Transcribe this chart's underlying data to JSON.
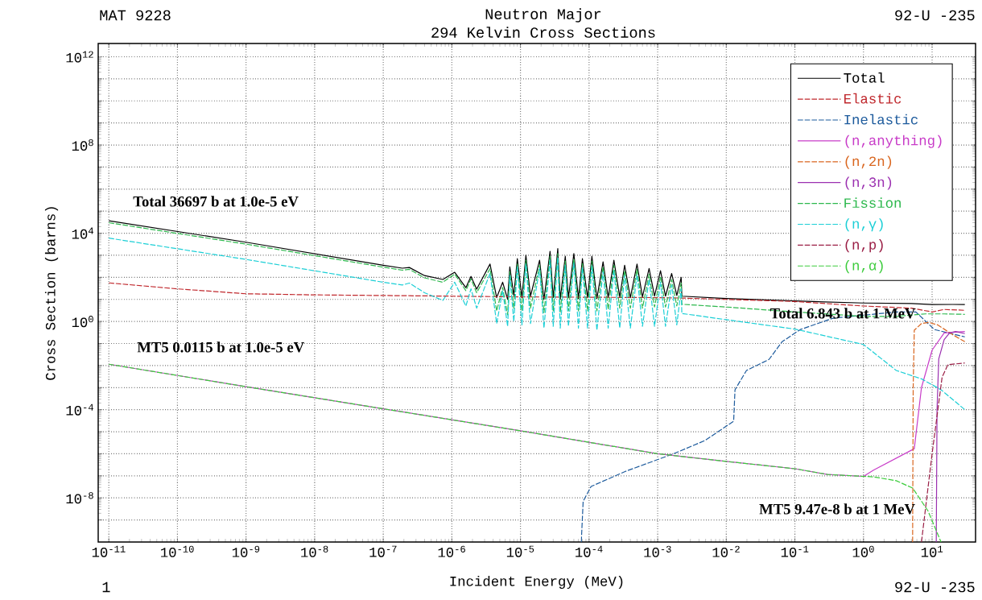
{
  "chart_data": {
    "type": "line",
    "title": "Neutron Major",
    "subtitle": "294 Kelvin Cross Sections",
    "xlabel": "Incident Energy (MeV)",
    "ylabel": "Cross Section (barns)",
    "log": "xy",
    "grid": true,
    "legend": "top right",
    "xlim": [
      7e-12,
      43
    ],
    "ylim": [
      1e-10,
      4000000000000.0
    ],
    "xticks": [
      {
        "value": 1e-11,
        "label": "10$^{-11}$"
      },
      {
        "value": 1e-10,
        "label": "10$^{-10}$"
      },
      {
        "value": 1e-09,
        "label": "10$^{-9}$"
      },
      {
        "value": 1e-08,
        "label": "10$^{-8}$"
      },
      {
        "value": 1e-07,
        "label": "10$^{-7}$"
      },
      {
        "value": 1e-06,
        "label": "10$^{-6}$"
      },
      {
        "value": 1e-05,
        "label": "10$^{-5}$"
      },
      {
        "value": 0.0001,
        "label": "10$^{-4}$"
      },
      {
        "value": 0.001,
        "label": "10$^{-3}$"
      },
      {
        "value": 0.01,
        "label": "10$^{-2}$"
      },
      {
        "value": 0.1,
        "label": "10$^{-1}$"
      },
      {
        "value": 1,
        "label": "10$^{0}$"
      },
      {
        "value": 10,
        "label": "10$^{1}$"
      }
    ],
    "yticks": [
      {
        "value": 1e-09,
        "label": null
      },
      {
        "value": 1e-08,
        "label": "10$^{-8}$"
      },
      {
        "value": 1e-07,
        "label": null
      },
      {
        "value": 1e-06,
        "label": null
      },
      {
        "value": 1e-05,
        "label": null
      },
      {
        "value": 0.0001,
        "label": "10$^{-4}$"
      },
      {
        "value": 0.001,
        "label": null
      },
      {
        "value": 0.01,
        "label": null
      },
      {
        "value": 0.1,
        "label": null
      },
      {
        "value": 1,
        "label": "10$^{0}$"
      },
      {
        "value": 10,
        "label": null
      },
      {
        "value": 100,
        "label": null
      },
      {
        "value": 1000,
        "label": null
      },
      {
        "value": 10000.0,
        "label": "10$^{4}$"
      },
      {
        "value": 100000.0,
        "label": null
      },
      {
        "value": 1000000.0,
        "label": null
      },
      {
        "value": 10000000.0,
        "label": null
      },
      {
        "value": 100000000.0,
        "label": "10$^{8}$"
      },
      {
        "value": 1000000000.0,
        "label": null
      },
      {
        "value": 10000000000.0,
        "label": null
      },
      {
        "value": 100000000000.0,
        "label": null
      },
      {
        "value": 1000000000000.0,
        "label": "10$^{12}$"
      }
    ],
    "annotations": [
      "MAT 9228",
      "92-U -235",
      "1",
      "92-U -235",
      "Total 36697 b at 1.0e-5 eV",
      "Total 6.843 b at 1 MeV",
      "MT5 0.0115 b at 1.0e-5 eV",
      "MT5 9.47e-8 b at 1 MeV"
    ],
    "series": [
      {
        "name": "Total",
        "color": "#000000",
        "line_style": "solid",
        "x": [
          1e-11,
          1e-09,
          1e-07,
          1.9e-07,
          2.4e-07,
          4e-07,
          7.4e-07,
          1.1e-06,
          1.6e-06,
          1.9e-06,
          2.3e-06,
          3.6e-06,
          4.5e-06,
          5.5e-06,
          6.5e-06,
          7e-06,
          8e-06,
          9e-06,
          1.05e-05,
          1.2e-05,
          1.4e-05,
          1.9e-05,
          2.2e-05,
          2.7e-05,
          3e-05,
          3.5e-05,
          3.8e-05,
          4.5e-05,
          5e-05,
          6e-05,
          7e-05,
          8e-05,
          9.5e-05,
          0.00011,
          0.00013,
          0.00016,
          0.00019,
          0.00023,
          0.00028,
          0.00033,
          0.0004,
          0.0005,
          0.0006,
          0.00075,
          0.0009,
          0.0011,
          0.0013,
          0.0016,
          0.0019,
          0.0022,
          0.00225,
          0.01,
          0.1,
          1,
          5,
          10,
          20,
          30
        ],
        "values": [
          36697,
          3900,
          350,
          260,
          280,
          120,
          80,
          170,
          34,
          110,
          29,
          400,
          12,
          60,
          10,
          300,
          15,
          700,
          12,
          1000,
          14,
          600,
          10,
          1500,
          12,
          2000,
          10,
          900,
          12,
          1200,
          11,
          700,
          12,
          900,
          11,
          500,
          12,
          600,
          13,
          350,
          12,
          400,
          13,
          250,
          14,
          200,
          14,
          150,
          15,
          100,
          14,
          11,
          8.5,
          6.843,
          6.5,
          5.8,
          5.9,
          5.8
        ]
      },
      {
        "name": "Elastic",
        "color": "#c0282d",
        "line_style": "dashed",
        "x": [
          1e-11,
          1e-10,
          1e-09,
          1e-08,
          1e-07,
          1e-06,
          1e-05,
          0.0001,
          0.001,
          0.00225,
          0.01,
          0.1,
          1,
          5,
          10,
          15,
          30
        ],
        "values": [
          56,
          30,
          18,
          16,
          15,
          14,
          13,
          12.5,
          12,
          11.5,
          10,
          8,
          5,
          4,
          2.7,
          3.5,
          3.2
        ]
      },
      {
        "name": "Inelastic",
        "color": "#1c5a9c",
        "line_style": "dashed",
        "x": [
          7.7e-05,
          8.2e-05,
          0.000107,
          0.00034,
          0.0017,
          0.0049,
          0.0128,
          0.0134,
          0.0197,
          0.042,
          0.065,
          0.12,
          0.36,
          3,
          5.8,
          10.8,
          30
        ],
        "values": [
          1e-10,
          7e-09,
          3.3e-08,
          1.6e-07,
          1e-06,
          4e-06,
          3e-05,
          0.0008,
          0.006,
          0.019,
          0.12,
          0.43,
          1.4,
          2.7,
          2.7,
          0.43,
          0.2
        ]
      },
      {
        "name": "(n,anything)",
        "color": "#c83cc8",
        "line_style": "solid",
        "x": [
          1e-11,
          1e-09,
          1e-07,
          1e-05,
          0.001,
          0.01,
          0.1,
          0.3,
          1,
          1.4,
          5.5,
          7,
          10,
          15,
          30
        ],
        "values": [
          0.0115,
          0.0011,
          0.00011,
          1.1e-05,
          1e-06,
          4.5e-07,
          2.1e-07,
          1.15e-07,
          9.47e-08,
          1.8e-07,
          1.7e-06,
          0.001,
          0.05,
          0.3,
          0.35
        ]
      },
      {
        "name": "(n,2n)",
        "color": "#d9661f",
        "line_style": "dashed",
        "x": [
          5.2,
          5.3,
          5.5,
          7,
          9,
          12,
          15,
          20,
          30
        ],
        "values": [
          1e-10,
          0.001,
          0.4,
          0.8,
          0.9,
          0.7,
          0.45,
          0.25,
          0.12
        ]
      },
      {
        "name": "(n,3n)",
        "color": "#9b30b0",
        "line_style": "solid",
        "x": [
          11.5,
          11.8,
          12.5,
          15,
          18,
          22,
          30
        ],
        "values": [
          1e-10,
          0.0001,
          0.02,
          0.15,
          0.3,
          0.35,
          0.28
        ]
      },
      {
        "name": "Fission",
        "color": "#2db84d",
        "line_style": "dashed",
        "x": [
          1e-11,
          1e-09,
          1e-07,
          1.9e-07,
          2.4e-07,
          4e-07,
          7.4e-07,
          1.1e-06,
          1.6e-06,
          1.9e-06,
          2.3e-06,
          3.6e-06,
          4.5e-06,
          5.5e-06,
          6.5e-06,
          7e-06,
          8e-06,
          9e-06,
          1.05e-05,
          1.2e-05,
          1.4e-05,
          1.9e-05,
          2.2e-05,
          2.7e-05,
          3e-05,
          3.5e-05,
          3.8e-05,
          4.5e-05,
          5e-05,
          6e-05,
          7e-05,
          8e-05,
          9.5e-05,
          0.00011,
          0.00013,
          0.00016,
          0.00019,
          0.00023,
          0.00028,
          0.00033,
          0.0004,
          0.0005,
          0.0006,
          0.00075,
          0.0009,
          0.0011,
          0.0013,
          0.0016,
          0.0019,
          0.0022,
          0.00225,
          0.01,
          0.1,
          1,
          3,
          8,
          15,
          30
        ],
        "values": [
          30000,
          3200,
          290,
          210,
          230,
          95,
          60,
          140,
          25,
          85,
          20,
          250,
          3,
          35,
          2,
          180,
          4,
          400,
          3,
          600,
          4,
          350,
          2.5,
          900,
          3,
          1200,
          2.5,
          550,
          3,
          700,
          3,
          420,
          3,
          550,
          3,
          300,
          3.5,
          350,
          4,
          200,
          4,
          230,
          4,
          140,
          4.5,
          110,
          4.5,
          80,
          5,
          55,
          6,
          4.5,
          2.7,
          1.7,
          1.7,
          2.2,
          2.2,
          2.1
        ]
      },
      {
        "name": "(n,γ)",
        "color": "#1ccfd6",
        "line_style": "dashed",
        "x": [
          1e-11,
          1e-09,
          1e-07,
          1.9e-07,
          2.4e-07,
          4e-07,
          7.4e-07,
          1.1e-06,
          1.6e-06,
          1.9e-06,
          2.3e-06,
          3.6e-06,
          4.5e-06,
          5.5e-06,
          6.5e-06,
          7e-06,
          8e-06,
          9e-06,
          1.05e-05,
          1.2e-05,
          1.4e-05,
          1.9e-05,
          2.2e-05,
          2.7e-05,
          3e-05,
          3.5e-05,
          3.8e-05,
          4.5e-05,
          5e-05,
          6e-05,
          7e-05,
          8e-05,
          9.5e-05,
          0.00011,
          0.00013,
          0.00016,
          0.00019,
          0.00023,
          0.00028,
          0.00033,
          0.0004,
          0.0005,
          0.0006,
          0.00075,
          0.0009,
          0.0011,
          0.0013,
          0.0016,
          0.0019,
          0.0022,
          0.00225,
          0.01,
          0.1,
          1,
          3,
          7,
          13.5,
          30
        ],
        "values": [
          6000,
          650,
          60,
          45,
          55,
          20,
          9,
          60,
          5,
          30,
          4,
          150,
          0.8,
          25,
          0.6,
          120,
          1,
          300,
          0.7,
          400,
          0.8,
          250,
          0.5,
          600,
          0.6,
          800,
          0.5,
          350,
          0.6,
          450,
          0.5,
          270,
          0.5,
          330,
          0.4,
          180,
          0.5,
          200,
          0.5,
          120,
          0.5,
          130,
          0.6,
          80,
          0.6,
          60,
          0.6,
          45,
          0.7,
          30,
          2.3,
          1.2,
          0.45,
          0.09,
          0.006,
          0.0025,
          0.0008,
          0.0001
        ]
      },
      {
        "name": "(n,p)",
        "color": "#9a1e45",
        "line_style": "dashed",
        "x": [
          7,
          10,
          14,
          17,
          30
        ],
        "values": [
          1e-10,
          1e-06,
          0.003,
          0.011,
          0.013
        ]
      },
      {
        "name": "(n,α)",
        "color": "#3dcc3d",
        "line_style": "dashed",
        "x": [
          1e-11,
          1e-09,
          1e-07,
          1e-05,
          0.001,
          0.01,
          0.1,
          0.3,
          1,
          1.4,
          3,
          5.2,
          8.7,
          13.5
        ],
        "values": [
          0.0115,
          0.0011,
          0.00011,
          1.1e-05,
          1e-06,
          4.5e-07,
          2.1e-07,
          1.15e-07,
          9.47e-08,
          9e-08,
          6e-08,
          2.8e-08,
          2.6e-09,
          1e-10
        ]
      }
    ]
  }
}
